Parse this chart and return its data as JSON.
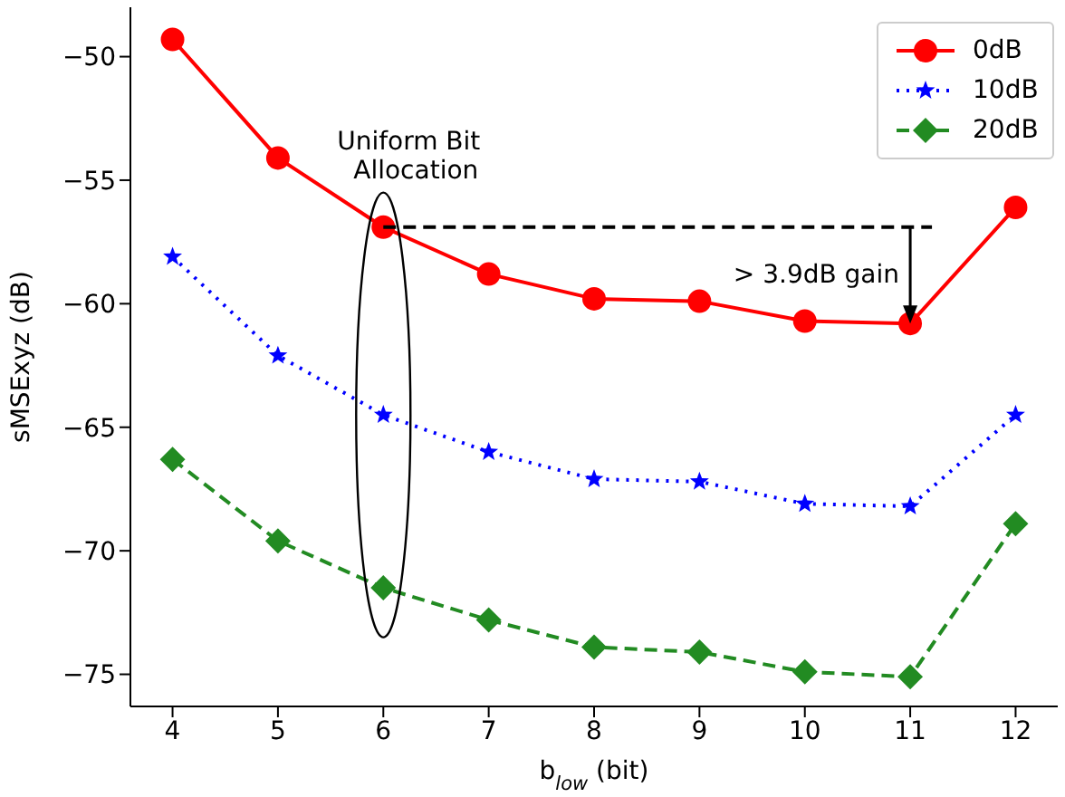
{
  "chart_data": {
    "type": "line",
    "xlabel": "b$_{low}$ (bit)",
    "ylabel": "sMSExyz (dB)",
    "ref_lines": [
      {
        "axis": "y",
        "value": -56.9,
        "color": "#000000",
        "line_style": "dashed"
      }
    ],
    "x": [
      4,
      5,
      6,
      7,
      8,
      9,
      10,
      11,
      12
    ],
    "xlim": [
      3.6,
      12.4
    ],
    "xticks": [
      4,
      5,
      6,
      7,
      8,
      9,
      10,
      11,
      12
    ],
    "ylim": [
      -76.3,
      -48
    ],
    "yticks": [
      -75,
      -70,
      -65,
      -60,
      -55,
      -50
    ],
    "grid": false,
    "legend": "top right",
    "series": [
      {
        "name": "0dB",
        "color": "#ff0000",
        "marker": "circle",
        "line_style": "solid",
        "values": [
          -49.3,
          -54.1,
          -56.9,
          -58.8,
          -59.8,
          -59.9,
          -60.7,
          -60.8,
          -56.1
        ]
      },
      {
        "name": "10dB",
        "color": "#0000ff",
        "marker": "star",
        "line_style": "dotted",
        "values": [
          -58.1,
          -62.1,
          -64.5,
          -66.0,
          -67.1,
          -67.2,
          -68.1,
          -68.2,
          -64.5
        ]
      },
      {
        "name": "20dB",
        "color": "#228b22",
        "marker": "diamond",
        "line_style": "dashed",
        "values": [
          -66.3,
          -69.6,
          -71.5,
          -72.8,
          -73.9,
          -74.1,
          -74.9,
          -75.1,
          -68.9
        ]
      }
    ],
    "annotations": [
      "Uniform Bit\nAllocation",
      "> 3.9dB gain"
    ]
  }
}
